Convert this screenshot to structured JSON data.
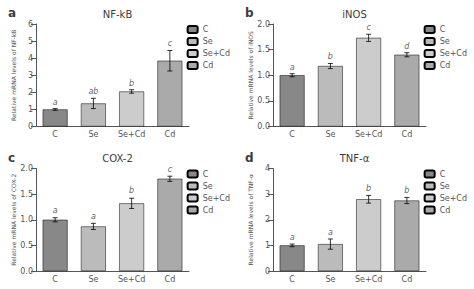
{
  "chart_data": [
    {
      "type": "bar",
      "label": "a",
      "title": "NF-kB",
      "ylabel": "Relative mRNA levels of NF-kB",
      "categories": [
        "C",
        "Se",
        "Se+Cd",
        "Cd"
      ],
      "values": [
        1.0,
        1.35,
        2.05,
        3.85
      ],
      "errors": [
        0.05,
        0.3,
        0.1,
        0.6
      ],
      "colors": [
        "#888888",
        "#bbbbbb",
        "#cccccc",
        "#aaaaaa"
      ],
      "annotations": [
        {
          "text": "a",
          "x": "C",
          "y": 1.12
        },
        {
          "text": "ab",
          "x": "Se",
          "y": 1.75
        },
        {
          "text": "b",
          "x": "Se+Cd",
          "y": 2.22
        },
        {
          "text": "c",
          "x": "Cd",
          "y": 4.58
        }
      ],
      "ylim": [
        0,
        6
      ],
      "yticks": [
        0,
        1,
        2,
        3,
        4,
        5,
        6
      ],
      "grid": false,
      "legend": "upper right"
    },
    {
      "type": "bar",
      "label": "b",
      "title": "iNOS",
      "ylabel": "Relative mRNA levels of iNOS",
      "categories": [
        "C",
        "Se",
        "Se+Cd",
        "Cd"
      ],
      "values": [
        1.0,
        1.18,
        1.73,
        1.4
      ],
      "errors": [
        0.03,
        0.05,
        0.07,
        0.04
      ],
      "colors": [
        "#888888",
        "#bbbbbb",
        "#cccccc",
        "#aaaaaa"
      ],
      "annotations": [
        {
          "text": "a",
          "x": "C",
          "y": 1.06
        },
        {
          "text": "b",
          "x": "Se",
          "y": 1.26
        },
        {
          "text": "c",
          "x": "Se+Cd",
          "y": 1.84
        },
        {
          "text": "d",
          "x": "Cd",
          "y": 1.47
        }
      ],
      "ylim": [
        0.0,
        2.0
      ],
      "yticks": [
        {
          "value": 0.0,
          "label": "0.0"
        },
        {
          "value": 0.5,
          "label": "0.5"
        },
        {
          "value": 1.0,
          "label": "1.0"
        },
        {
          "value": 1.5,
          "label": "1.5"
        },
        {
          "value": 2.0,
          "label": "2.0"
        }
      ],
      "grid": false,
      "legend": "upper right"
    },
    {
      "type": "bar",
      "label": "c",
      "title": "COX-2",
      "ylabel": "Relative mRNA levels of COX-2",
      "categories": [
        "C",
        "Se",
        "Se+Cd",
        "Cd"
      ],
      "values": [
        1.0,
        0.87,
        1.32,
        1.8
      ],
      "errors": [
        0.04,
        0.06,
        0.1,
        0.05
      ],
      "colors": [
        "#888888",
        "#bbbbbb",
        "#cccccc",
        "#aaaaaa"
      ],
      "annotations": [
        {
          "text": "a",
          "x": "C",
          "y": 1.08
        },
        {
          "text": "a",
          "x": "Se",
          "y": 0.96
        },
        {
          "text": "b",
          "x": "Se+Cd",
          "y": 1.47
        },
        {
          "text": "c",
          "x": "Cd",
          "y": 1.89
        }
      ],
      "ylim": [
        0.0,
        2.0
      ],
      "yticks": [
        {
          "value": 0.0,
          "label": "0.0"
        },
        {
          "value": 0.5,
          "label": "0.5"
        },
        {
          "value": 1.0,
          "label": "1.0"
        },
        {
          "value": 1.5,
          "label": "1.5"
        },
        {
          "value": 2.0,
          "label": "2.0"
        }
      ],
      "grid": false,
      "legend": "upper right"
    },
    {
      "type": "bar",
      "label": "d",
      "title": "TNF-α",
      "ylabel": "Relative mRNA levels of TNF-α",
      "categories": [
        "C",
        "Se",
        "Se+Cd",
        "Cd"
      ],
      "values": [
        1.0,
        1.05,
        2.8,
        2.75
      ],
      "errors": [
        0.05,
        0.2,
        0.15,
        0.12
      ],
      "colors": [
        "#888888",
        "#bbbbbb",
        "#cccccc",
        "#aaaaaa"
      ],
      "annotations": [
        {
          "text": "a",
          "x": "C",
          "y": 1.1
        },
        {
          "text": "a",
          "x": "Se",
          "y": 1.32
        },
        {
          "text": "b",
          "x": "Se+Cd",
          "y": 3.02
        },
        {
          "text": "b",
          "x": "Cd",
          "y": 2.95
        }
      ],
      "ylim": [
        0,
        4
      ],
      "yticks": [
        0,
        1,
        2,
        3,
        4
      ],
      "grid": false,
      "legend": "upper right"
    }
  ]
}
